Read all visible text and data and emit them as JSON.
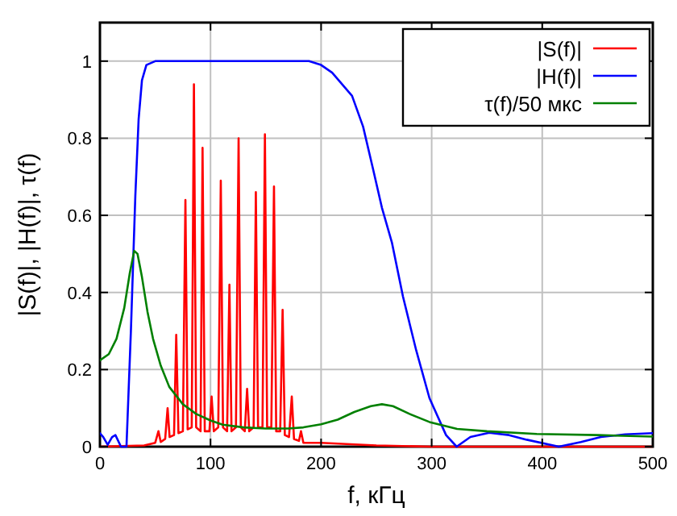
{
  "chart_data": {
    "type": "line",
    "xlabel": "f, кГц",
    "ylabel": "|S(f)|, |H(f)|, τ(f)",
    "xlim": [
      0,
      500
    ],
    "ylim": [
      0,
      1.1
    ],
    "xticks": [
      0,
      100,
      200,
      300,
      400,
      500
    ],
    "yticks": [
      0,
      0.2,
      0.4,
      0.6,
      0.8,
      1
    ],
    "grid": true,
    "legend": "top right",
    "line_style": "solid",
    "series": [
      {
        "name": "|S(f)|",
        "color": "#ff0000",
        "x": [
          0,
          40,
          50,
          52.9,
          55,
          59,
          61.2,
          63,
          67,
          69,
          71,
          75,
          77.3,
          79.3,
          83,
          85,
          87,
          91,
          92.8,
          94.8,
          99,
          101,
          103,
          107,
          109.3,
          111.3,
          115,
          117.1,
          119,
          123,
          125.4,
          127.4,
          131,
          133.1,
          135,
          139,
          141,
          143,
          147,
          149.2,
          151.2,
          155,
          157.4,
          159.4,
          163,
          165.2,
          167.2,
          171,
          173.5,
          175.5,
          180,
          181.8,
          184,
          200,
          250,
          300,
          500
        ],
        "values": [
          0,
          0.003,
          0.01,
          0.04,
          0.012,
          0.02,
          0.1,
          0.025,
          0.03,
          0.29,
          0.035,
          0.04,
          0.64,
          0.045,
          0.05,
          0.94,
          0.05,
          0.04,
          0.775,
          0.04,
          0.04,
          0.13,
          0.04,
          0.05,
          0.69,
          0.05,
          0.04,
          0.42,
          0.04,
          0.05,
          0.8,
          0.05,
          0.04,
          0.15,
          0.04,
          0.05,
          0.66,
          0.05,
          0.05,
          0.81,
          0.05,
          0.05,
          0.675,
          0.04,
          0.04,
          0.355,
          0.03,
          0.025,
          0.13,
          0.02,
          0.015,
          0.04,
          0.01,
          0.01,
          0.003,
          0,
          0
        ]
      },
      {
        "name": "|H(f)|",
        "color": "#0000ff",
        "x": [
          0,
          3,
          7,
          11,
          14,
          19,
          24,
          28,
          32,
          35,
          38,
          42,
          50,
          100,
          189,
          200,
          210,
          228,
          238,
          247,
          255,
          264,
          274,
          286,
          298,
          313,
          322.6,
          335,
          352,
          370,
          386,
          415,
          435,
          453,
          475,
          500
        ],
        "values": [
          0.035,
          0.025,
          0.005,
          0.025,
          0.03,
          0,
          0,
          0.3,
          0.65,
          0.85,
          0.95,
          0.99,
          1,
          1,
          1,
          0.99,
          0.97,
          0.91,
          0.83,
          0.72,
          0.62,
          0.53,
          0.39,
          0.25,
          0.126,
          0.03,
          0,
          0.025,
          0.036,
          0.03,
          0.018,
          0,
          0.012,
          0.025,
          0.032,
          0.035
        ]
      },
      {
        "name": "τ(f)/50 мкс",
        "color": "#008000",
        "x": [
          0,
          8,
          15,
          22,
          27,
          31,
          34,
          38,
          43,
          48,
          55,
          62.7,
          75,
          87,
          100,
          111,
          130,
          150,
          170,
          184,
          200,
          215,
          230,
          245,
          255,
          265,
          280,
          298,
          323,
          350,
          395,
          450,
          500
        ],
        "values": [
          0.224,
          0.24,
          0.28,
          0.36,
          0.45,
          0.508,
          0.5,
          0.44,
          0.35,
          0.28,
          0.21,
          0.155,
          0.11,
          0.085,
          0.068,
          0.057,
          0.05,
          0.047,
          0.047,
          0.05,
          0.058,
          0.07,
          0.09,
          0.105,
          0.11,
          0.105,
          0.085,
          0.064,
          0.046,
          0.04,
          0.033,
          0.03,
          0.026
        ]
      }
    ]
  }
}
